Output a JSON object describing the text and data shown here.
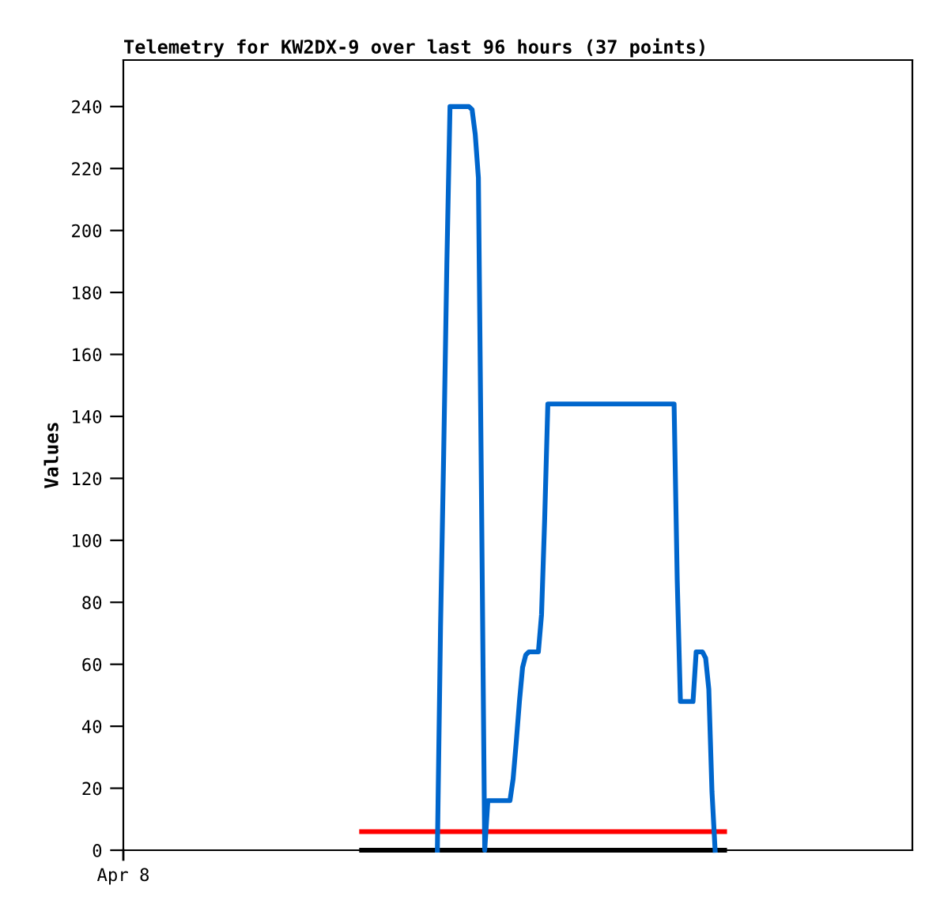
{
  "chart_data": {
    "type": "line",
    "title": "Telemetry for KW2DX-9 over last 96 hours (37 points)",
    "ylabel": "Values",
    "annotations": [
      "Apr 8"
    ],
    "categories": [
      null,
      null,
      null,
      null,
      null,
      null,
      null,
      null,
      null,
      null,
      null,
      null,
      null,
      null,
      null,
      null,
      null,
      null,
      null,
      null,
      null,
      null,
      null,
      null,
      null,
      null,
      null,
      null,
      null,
      null,
      null,
      null,
      null,
      null,
      null,
      null,
      null,
      null,
      null,
      null,
      null,
      null,
      null,
      null,
      null,
      null,
      null,
      null,
      null,
      null,
      null,
      null,
      null,
      null,
      null,
      null,
      null,
      null,
      null,
      null,
      null,
      null,
      null,
      null,
      null,
      null,
      null,
      null,
      null,
      null,
      null,
      null,
      null,
      null,
      null,
      null,
      null,
      null,
      null,
      null,
      null,
      null,
      null,
      null,
      null,
      null,
      null,
      null,
      null,
      null,
      null,
      null,
      null,
      null,
      null,
      null,
      null,
      null,
      null,
      null,
      null,
      null,
      null,
      null,
      null,
      null,
      null,
      null,
      null,
      null,
      null,
      null,
      null,
      null,
      null,
      null,
      null,
      null,
      null,
      null,
      null,
      null,
      null,
      null,
      null,
      null,
      null,
      null,
      null,
      null,
      null,
      null,
      null,
      null,
      null,
      null,
      null,
      null,
      null,
      null,
      null,
      null,
      null,
      null,
      null,
      null,
      null,
      null,
      null,
      null,
      null,
      null,
      null,
      null,
      null,
      null,
      null,
      null,
      null,
      null,
      null,
      null,
      null,
      null,
      null,
      null,
      null,
      null,
      null,
      null,
      null,
      null,
      null,
      null,
      null,
      null,
      null,
      null,
      null,
      null,
      null,
      null,
      null,
      null,
      null,
      null,
      null,
      null,
      null,
      null,
      null,
      null,
      null,
      null,
      null,
      null,
      null,
      null,
      null,
      null,
      null,
      null,
      null,
      null,
      null,
      null,
      null,
      null,
      null,
      null,
      null,
      null,
      null,
      null,
      null,
      null,
      null,
      null,
      null,
      null,
      null,
      null,
      null,
      null,
      null,
      null,
      null,
      null,
      null,
      null,
      null,
      null,
      null,
      null,
      null,
      null,
      null,
      null,
      null,
      null,
      null,
      null,
      null,
      null,
      null,
      null,
      null,
      null,
      null,
      null
    ],
    "ylim": [
      0,
      255
    ],
    "yticks": [
      0,
      20,
      40,
      60,
      80,
      100,
      120,
      140,
      160,
      180,
      200,
      220,
      240
    ],
    "grid": false,
    "legend": false,
    "marker": "none",
    "line_style": "solid",
    "series": [
      {
        "color": "#0066cc",
        "values": [
          null,
          null,
          null,
          null,
          null,
          null,
          null,
          null,
          null,
          null,
          null,
          null,
          null,
          null,
          null,
          null,
          null,
          null,
          null,
          null,
          null,
          null,
          null,
          null,
          null,
          null,
          null,
          null,
          null,
          null,
          null,
          null,
          null,
          null,
          null,
          null,
          null,
          null,
          null,
          null,
          null,
          null,
          null,
          null,
          null,
          null,
          null,
          null,
          null,
          null,
          null,
          null,
          null,
          null,
          null,
          null,
          null,
          null,
          null,
          null,
          null,
          null,
          null,
          null,
          null,
          null,
          null,
          null,
          null,
          null,
          null,
          null,
          null,
          null,
          null,
          null,
          null,
          null,
          null,
          null,
          null,
          null,
          null,
          null,
          null,
          null,
          null,
          null,
          null,
          null,
          null,
          null,
          null,
          null,
          null,
          null,
          null,
          null,
          null,
          0,
          72,
          128,
          189,
          240,
          240,
          240,
          240,
          240,
          240,
          240,
          239,
          231,
          217,
          112,
          0,
          16,
          16,
          16,
          16,
          16,
          16,
          16,
          16,
          23,
          35,
          48,
          59,
          63,
          64,
          64,
          64,
          64,
          76,
          107,
          144,
          144,
          144,
          144,
          144,
          144,
          144,
          144,
          144,
          144,
          144,
          144,
          144,
          144,
          144,
          144,
          144,
          144,
          144,
          144,
          144,
          144,
          144,
          144,
          144,
          144,
          144,
          144,
          144,
          144,
          144,
          144,
          144,
          144,
          144,
          144,
          144,
          144,
          144,
          144,
          144,
          87,
          48,
          48,
          48,
          48,
          48,
          64,
          64,
          64,
          62,
          52,
          19,
          0,
          null,
          null,
          null,
          null,
          null,
          null,
          null,
          null,
          null,
          null,
          null,
          null,
          null,
          null,
          null,
          null,
          null,
          null,
          null,
          null,
          null,
          null,
          null,
          null,
          null,
          null,
          null,
          null,
          null,
          null,
          null,
          null,
          null,
          null,
          null,
          null,
          null,
          null,
          null,
          null,
          null,
          null,
          null,
          null,
          null,
          null,
          null,
          null,
          null,
          null,
          null,
          null,
          null,
          null,
          null,
          null,
          null,
          null,
          null,
          null,
          null,
          null
        ]
      },
      {
        "color": "#ff0000",
        "values": [
          null,
          null,
          null,
          null,
          null,
          null,
          null,
          null,
          null,
          null,
          null,
          null,
          null,
          null,
          null,
          null,
          null,
          null,
          null,
          null,
          null,
          null,
          null,
          null,
          null,
          null,
          null,
          null,
          null,
          null,
          null,
          null,
          null,
          null,
          null,
          null,
          null,
          null,
          null,
          null,
          null,
          null,
          null,
          null,
          null,
          null,
          null,
          null,
          null,
          null,
          null,
          null,
          null,
          null,
          null,
          null,
          null,
          null,
          null,
          null,
          null,
          null,
          null,
          null,
          null,
          null,
          null,
          null,
          null,
          null,
          null,
          null,
          null,
          null,
          null,
          6,
          6,
          6,
          6,
          6,
          6,
          6,
          6,
          6,
          6,
          6,
          6,
          6,
          6,
          6,
          6,
          6,
          6,
          6,
          6,
          6,
          6,
          6,
          6,
          6,
          6,
          6,
          6,
          6,
          6,
          6,
          6,
          6,
          6,
          6,
          6,
          6,
          6,
          6,
          6,
          6,
          6,
          6,
          6,
          6,
          6,
          6,
          6,
          6,
          6,
          6,
          6,
          6,
          6,
          6,
          6,
          6,
          6,
          6,
          6,
          6,
          6,
          6,
          6,
          6,
          6,
          6,
          6,
          6,
          6,
          6,
          6,
          6,
          6,
          6,
          6,
          6,
          6,
          6,
          6,
          6,
          6,
          6,
          6,
          6,
          6,
          6,
          6,
          6,
          6,
          6,
          6,
          6,
          6,
          6,
          6,
          6,
          6,
          6,
          6,
          6,
          6,
          6,
          6,
          6,
          6,
          6,
          6,
          6,
          6,
          6,
          6,
          6,
          6,
          6,
          6,
          null,
          null,
          null,
          null,
          null,
          null,
          null,
          null,
          null,
          null,
          null,
          null,
          null,
          null,
          null,
          null,
          null,
          null,
          null,
          null,
          null,
          null,
          null,
          null,
          null,
          null,
          null,
          null,
          null,
          null,
          null,
          null,
          null,
          null,
          null,
          null,
          null,
          null,
          null,
          null,
          null,
          null,
          null,
          null,
          null,
          null,
          null,
          null,
          null,
          null,
          null,
          null,
          null,
          null,
          null,
          null,
          null,
          null,
          null
        ]
      },
      {
        "color": "#000000",
        "values": [
          null,
          null,
          null,
          null,
          null,
          null,
          null,
          null,
          null,
          null,
          null,
          null,
          null,
          null,
          null,
          null,
          null,
          null,
          null,
          null,
          null,
          null,
          null,
          null,
          null,
          null,
          null,
          null,
          null,
          null,
          null,
          null,
          null,
          null,
          null,
          null,
          null,
          null,
          null,
          null,
          null,
          null,
          null,
          null,
          null,
          null,
          null,
          null,
          null,
          null,
          null,
          null,
          null,
          null,
          null,
          null,
          null,
          null,
          null,
          null,
          null,
          null,
          null,
          null,
          null,
          null,
          null,
          null,
          null,
          null,
          null,
          null,
          null,
          null,
          null,
          0,
          0,
          0,
          0,
          0,
          0,
          0,
          0,
          0,
          0,
          0,
          0,
          0,
          0,
          0,
          0,
          0,
          0,
          0,
          0,
          0,
          0,
          0,
          0,
          0,
          0,
          0,
          0,
          0,
          0,
          0,
          0,
          0,
          0,
          0,
          0,
          0,
          0,
          0,
          0,
          0,
          0,
          0,
          0,
          0,
          0,
          0,
          0,
          0,
          0,
          0,
          0,
          0,
          0,
          0,
          0,
          0,
          0,
          0,
          0,
          0,
          0,
          0,
          0,
          0,
          0,
          0,
          0,
          0,
          0,
          0,
          0,
          0,
          0,
          0,
          0,
          0,
          0,
          0,
          0,
          0,
          0,
          0,
          0,
          0,
          0,
          0,
          0,
          0,
          0,
          0,
          0,
          0,
          0,
          0,
          0,
          0,
          0,
          0,
          0,
          0,
          0,
          0,
          0,
          0,
          0,
          0,
          0,
          0,
          0,
          0,
          0,
          0,
          0,
          0,
          0,
          null,
          null,
          null,
          null,
          null,
          null,
          null,
          null,
          null,
          null,
          null,
          null,
          null,
          null,
          null,
          null,
          null,
          null,
          null,
          null,
          null,
          null,
          null,
          null,
          null,
          null,
          null,
          null,
          null,
          null,
          null,
          null,
          null,
          null,
          null,
          null,
          null,
          null,
          null,
          null,
          null,
          null,
          null,
          null,
          null,
          null,
          null,
          null,
          null,
          null,
          null,
          null,
          null,
          null,
          null,
          null,
          null,
          null,
          null
        ]
      }
    ]
  }
}
